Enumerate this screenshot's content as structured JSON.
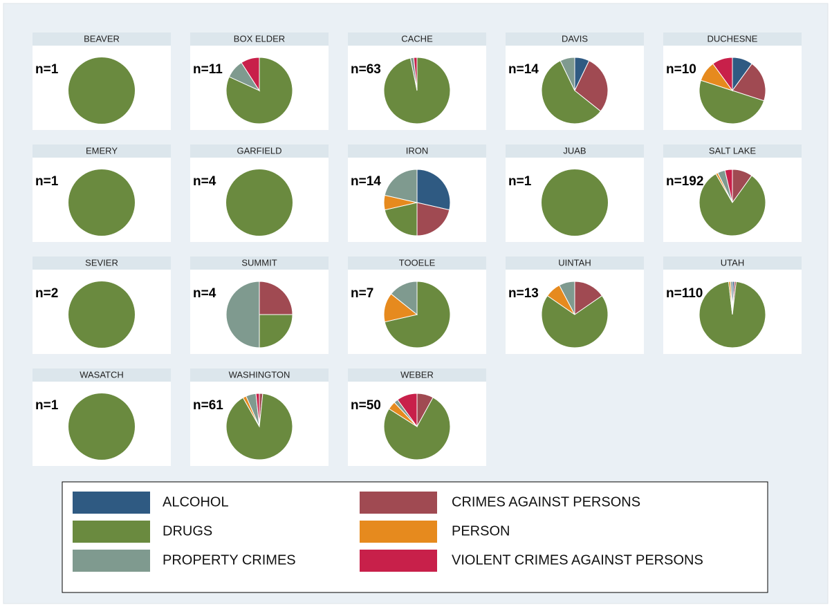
{
  "legend": {
    "labels": [
      "ALCOHOL",
      "CRIMES AGAINST PERSONS",
      "DRUGS",
      "PERSON",
      "PROPERTY CRIMES",
      "VIOLENT CRIMES AGAINST PERSONS"
    ],
    "colors": [
      "#2f5a82",
      "#a04a52",
      "#6a8a3f",
      "#e68a1e",
      "#7f9a8f",
      "#c8204a"
    ]
  },
  "chart_data": [
    {
      "type": "pie",
      "title": "BEAVER",
      "annotation": "n=1",
      "values": [
        0,
        0,
        1,
        0,
        0,
        0
      ]
    },
    {
      "type": "pie",
      "title": "BOX ELDER",
      "annotation": "n=11",
      "values": [
        0,
        0,
        9,
        0,
        1,
        1
      ]
    },
    {
      "type": "pie",
      "title": "CACHE",
      "annotation": "n=63",
      "values": [
        0,
        0,
        61,
        0,
        1,
        1
      ]
    },
    {
      "type": "pie",
      "title": "DAVIS",
      "annotation": "n=14",
      "values": [
        1,
        4,
        8,
        0,
        1,
        0
      ]
    },
    {
      "type": "pie",
      "title": "DUCHESNE",
      "annotation": "n=10",
      "values": [
        1,
        2,
        5,
        1,
        0,
        1
      ]
    },
    {
      "type": "pie",
      "title": "EMERY",
      "annotation": "n=1",
      "values": [
        0,
        0,
        1,
        0,
        0,
        0
      ]
    },
    {
      "type": "pie",
      "title": "GARFIELD",
      "annotation": "n=4",
      "values": [
        0,
        0,
        4,
        0,
        0,
        0
      ]
    },
    {
      "type": "pie",
      "title": "IRON",
      "annotation": "n=14",
      "values": [
        4,
        3,
        3,
        1,
        3,
        0
      ]
    },
    {
      "type": "pie",
      "title": "JUAB",
      "annotation": "n=1",
      "values": [
        0,
        0,
        1,
        0,
        0,
        0
      ]
    },
    {
      "type": "pie",
      "title": "SALT LAKE",
      "annotation": "n=192",
      "values": [
        0,
        19,
        157,
        2,
        7,
        7
      ]
    },
    {
      "type": "pie",
      "title": "SEVIER",
      "annotation": "n=2",
      "values": [
        0,
        0,
        2,
        0,
        0,
        0
      ]
    },
    {
      "type": "pie",
      "title": "SUMMIT",
      "annotation": "n=4",
      "values": [
        0,
        1,
        1,
        0,
        2,
        0
      ]
    },
    {
      "type": "pie",
      "title": "TOOELE",
      "annotation": "n=7",
      "values": [
        0,
        0,
        5,
        1,
        1,
        0
      ]
    },
    {
      "type": "pie",
      "title": "UINTAH",
      "annotation": "n=13",
      "values": [
        0,
        2,
        9,
        1,
        1,
        0
      ]
    },
    {
      "type": "pie",
      "title": "UTAH",
      "annotation": "n=110",
      "values": [
        1,
        1,
        106,
        1,
        1,
        0
      ]
    },
    {
      "type": "pie",
      "title": "WASATCH",
      "annotation": "n=1",
      "values": [
        0,
        0,
        1,
        0,
        0,
        0
      ]
    },
    {
      "type": "pie",
      "title": "WASHINGTON",
      "annotation": "n=61",
      "values": [
        0,
        1,
        55,
        1,
        3,
        1
      ]
    },
    {
      "type": "pie",
      "title": "WEBER",
      "annotation": "n=50",
      "values": [
        0,
        4,
        38,
        2,
        1,
        5
      ]
    }
  ]
}
